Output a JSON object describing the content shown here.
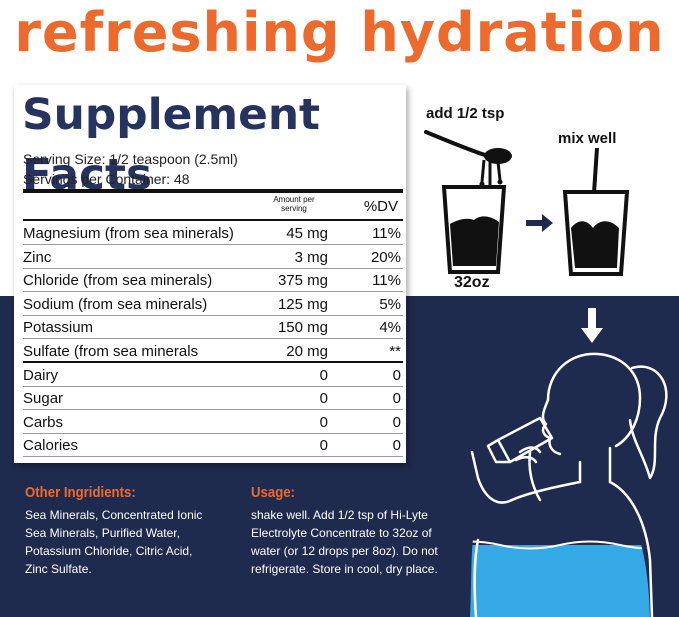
{
  "colors": {
    "accent_orange": "#ee6a2c",
    "navy": "#1f2a4f",
    "facts_title": "#26335f",
    "water_blue": "#35a8e6",
    "arrow_navy": "#1f2a4f"
  },
  "headline": "refreshing hydration",
  "facts": {
    "title": "Supplement Facts",
    "serving_size": "Serving Size: 1/2 teaspoon (2.5ml)",
    "servings_per_container": "Servings per Container: 48",
    "amount_header_line1": "Amount per",
    "amount_header_line2": "serving",
    "dv_header": "%DV",
    "rows": [
      {
        "name": "Magnesium (from sea minerals)",
        "amount": "45 mg",
        "dv": "11%"
      },
      {
        "name": "Zinc",
        "amount": "3 mg",
        "dv": "20%"
      },
      {
        "name": "Chloride (from sea minerals)",
        "amount": "375 mg",
        "dv": "11%"
      },
      {
        "name": "Sodium (from sea minerals)",
        "amount": "125 mg",
        "dv": "5%"
      },
      {
        "name": "Potassium",
        "amount": "150 mg",
        "dv": "4%"
      },
      {
        "name": "Sulfate (from sea minerals",
        "amount": "20 mg",
        "dv": "**"
      },
      {
        "name": "Dairy",
        "amount": "0",
        "dv": "0"
      },
      {
        "name": "Sugar",
        "amount": "0",
        "dv": "0"
      },
      {
        "name": "Carbs",
        "amount": "0",
        "dv": "0"
      },
      {
        "name": "Calories",
        "amount": "0",
        "dv": "0"
      }
    ]
  },
  "other_ingredients": {
    "heading": "Other Ingridients:",
    "lines": [
      "Sea Minerals, Concentrated Ionic",
      "Sea Minerals, Purified Water,",
      "Potassium Chloride, Citric Acid,",
      "Zinc Sulfate."
    ]
  },
  "usage": {
    "heading": "Usage:",
    "lines": [
      "shake well. Add 1/2 tsp of Hi-Lyte",
      "Electrolyte Concentrate to 32oz of",
      "water (or 12 drops per 8oz). Do not",
      "refrigerate. Store in cool, dry place."
    ]
  },
  "steps": {
    "step1_label": "add 1/2 tsp",
    "step2_label": "mix well",
    "glass_size": "32oz"
  },
  "icons": {
    "spoon": "spoon-pouring-icon",
    "glass_filled": "glass-icon",
    "arrow_right": "arrow-right-icon",
    "arrow_down": "arrow-down-icon",
    "person": "woman-drinking-silhouette-icon"
  }
}
